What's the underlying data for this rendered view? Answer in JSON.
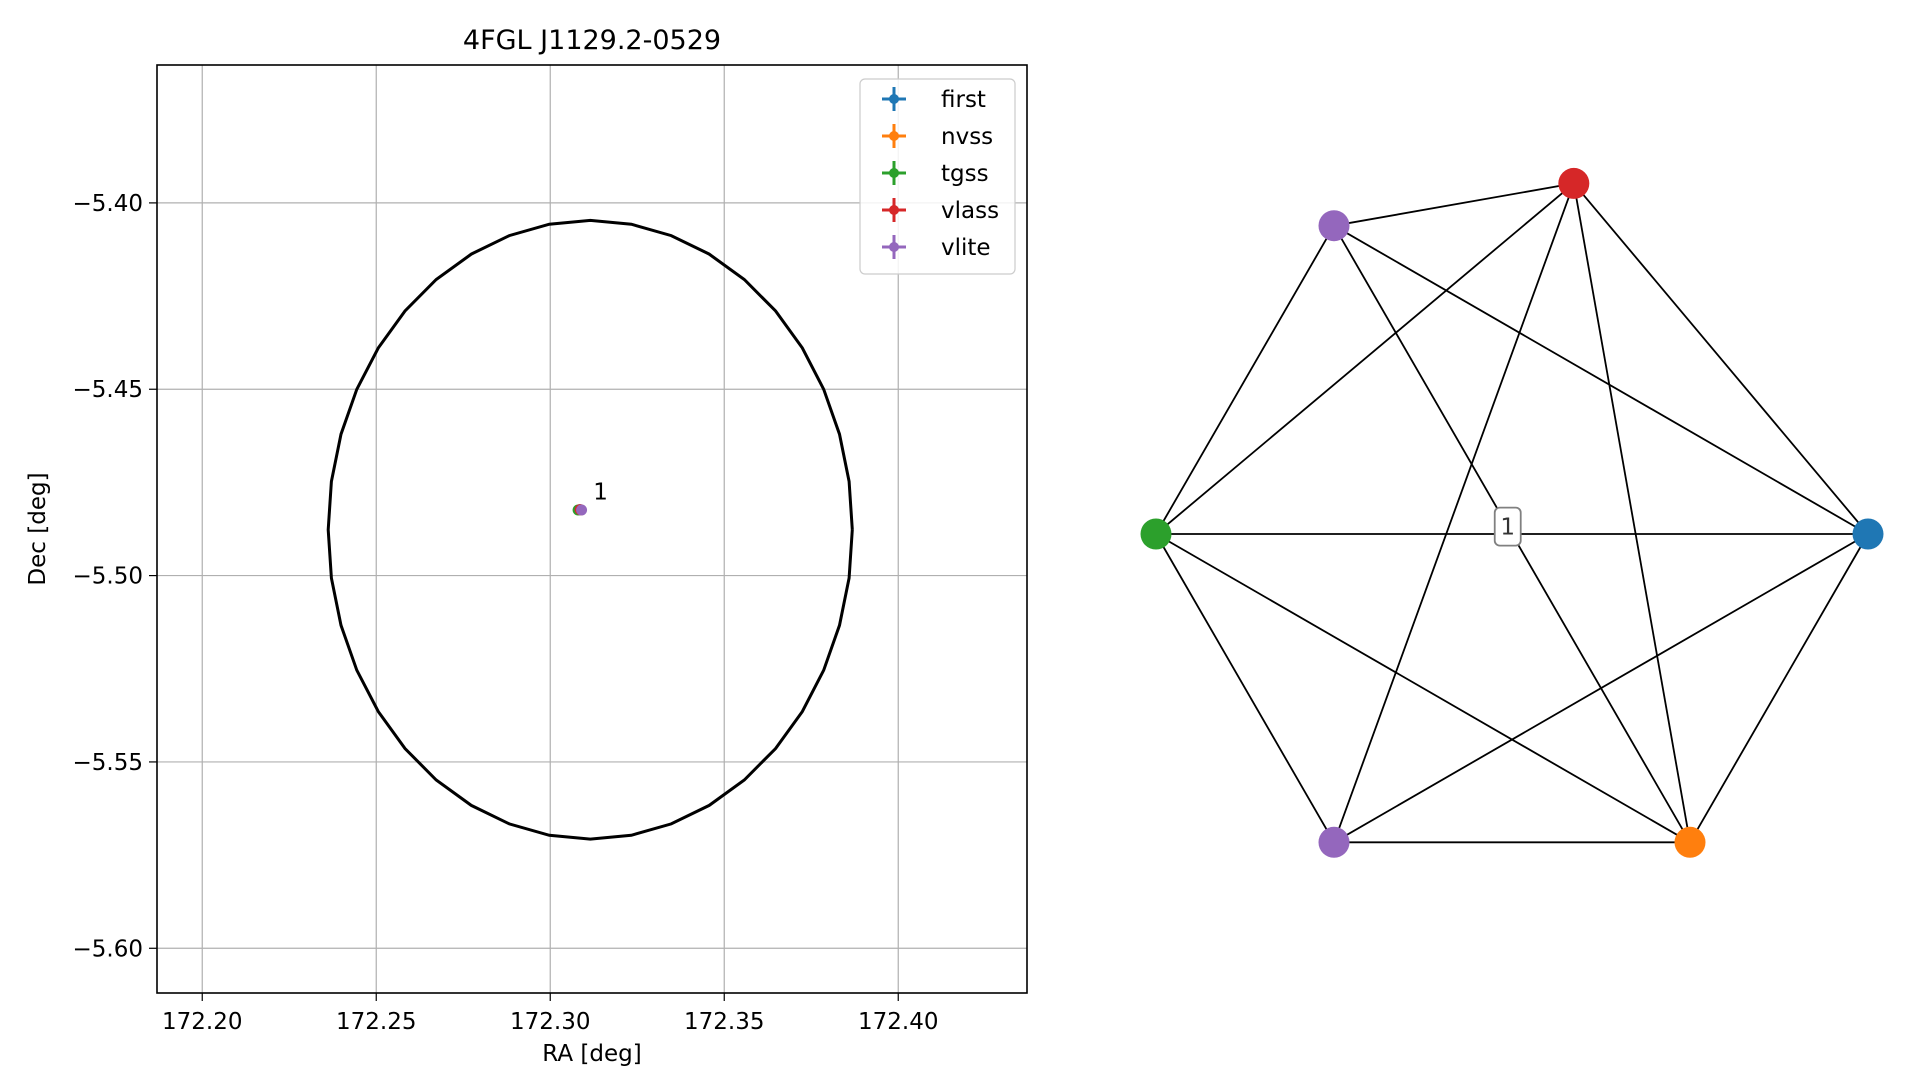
{
  "chart_data": [
    {
      "type": "scatter",
      "title": "4FGL J1129.2-0529",
      "xlabel": "RA [deg]",
      "ylabel": "Dec [deg]",
      "xlim": [
        172.187,
        172.437
      ],
      "ylim": [
        -5.612,
        -5.363
      ],
      "xticks": [
        172.2,
        172.25,
        172.3,
        172.35,
        172.4
      ],
      "xtick_labels": [
        "172.20",
        "172.25",
        "172.30",
        "172.35",
        "172.40"
      ],
      "yticks": [
        -5.4,
        -5.45,
        -5.5,
        -5.55,
        -5.6
      ],
      "ytick_labels": [
        "−5.40",
        "−5.45",
        "−5.50",
        "−5.55",
        "−5.60"
      ],
      "grid": true,
      "legend_position": "top-right",
      "series": [
        {
          "name": "first",
          "color": "#1f77b4",
          "x": [
            172.3085
          ],
          "y": [
            -5.4823
          ]
        },
        {
          "name": "nvss",
          "color": "#ff7f0e",
          "x": [
            172.3088
          ],
          "y": [
            -5.4824
          ]
        },
        {
          "name": "tgss",
          "color": "#2ca02c",
          "x": [
            172.308
          ],
          "y": [
            -5.4824
          ]
        },
        {
          "name": "vlass",
          "color": "#d62728",
          "x": [
            172.3086
          ],
          "y": [
            -5.4823
          ]
        },
        {
          "name": "vlite",
          "color": "#9467bd",
          "x": [
            172.309
          ],
          "y": [
            -5.4824
          ]
        }
      ],
      "ellipse": {
        "center": [
          172.3115,
          -5.4877
        ],
        "semi_axis_ra": 0.0753,
        "semi_axis_dec": 0.083,
        "color": "#000000"
      },
      "annotations": [
        {
          "text": "1",
          "x": 172.3095,
          "y": -5.4823
        }
      ]
    },
    {
      "type": "graph",
      "nodes": [
        {
          "id": "first",
          "color": "#1f77b4"
        },
        {
          "id": "nvss",
          "color": "#ff7f0e"
        },
        {
          "id": "vlite_b",
          "color": "#9467bd"
        },
        {
          "id": "tgss",
          "color": "#2ca02c"
        },
        {
          "id": "vlite_a",
          "color": "#9467bd"
        },
        {
          "id": "vlass",
          "color": "#d62728"
        }
      ],
      "edges": [
        [
          "first",
          "nvss"
        ],
        [
          "first",
          "vlite_b"
        ],
        [
          "first",
          "tgss"
        ],
        [
          "first",
          "vlite_a"
        ],
        [
          "first",
          "vlass"
        ],
        [
          "nvss",
          "vlite_b"
        ],
        [
          "nvss",
          "tgss"
        ],
        [
          "nvss",
          "vlite_a"
        ],
        [
          "nvss",
          "vlass"
        ],
        [
          "vlite_b",
          "tgss"
        ],
        [
          "vlite_b",
          "vlass"
        ],
        [
          "tgss",
          "vlite_a"
        ],
        [
          "tgss",
          "vlass"
        ],
        [
          "vlite_a",
          "vlass"
        ]
      ],
      "edge_labels": [
        {
          "text": "1"
        }
      ]
    }
  ]
}
